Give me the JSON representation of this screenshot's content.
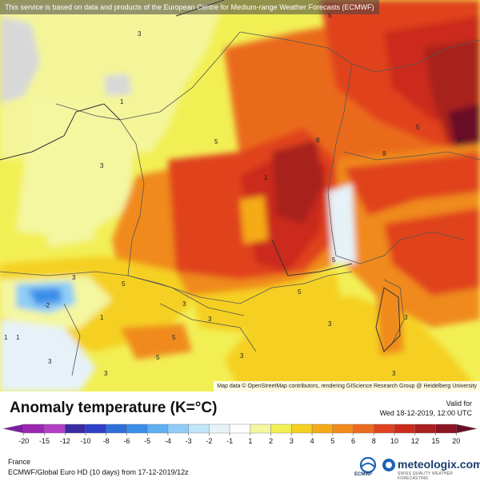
{
  "banner": "This service is based on data and products of the European Centre for Medium-range Weather Forecasts (ECMWF)",
  "attribution": "Map data © OpenStreetMap contributors, rendering GIScience Research Group @ Heidelberg University",
  "map": {
    "contour_labels": [
      "1",
      "3",
      "5",
      "1",
      "3",
      "1",
      "5",
      "3",
      "5",
      "5",
      "8",
      "8",
      "3",
      "5",
      "5",
      "3",
      "5",
      "3",
      "3",
      "5",
      "3",
      "1",
      "-2",
      "1",
      "3",
      "3",
      "5",
      "3"
    ]
  },
  "legend": {
    "title": "Anomaly temperature (K=°C)",
    "scale_values": [
      "-20",
      "-15",
      "-12",
      "-10",
      "-8",
      "-6",
      "-5",
      "-4",
      "-3",
      "-2",
      "-1",
      "1",
      "2",
      "3",
      "4",
      "5",
      "6",
      "8",
      "10",
      "12",
      "15",
      "20"
    ],
    "colors": [
      "#7b1fa2",
      "#9c27b0",
      "#b43fc6",
      "#3b2ba0",
      "#2e3fc8",
      "#2f6fd8",
      "#3a8ee8",
      "#5fb0f2",
      "#8fcdf6",
      "#c2e4f8",
      "#e6f2f8",
      "#ffffff",
      "#f4f6a0",
      "#f2ef55",
      "#f5d020",
      "#f5aa18",
      "#f08a1c",
      "#ea6a1f",
      "#e0421e",
      "#cb2a1a",
      "#a8201f",
      "#8a1420",
      "#6b0d25"
    ]
  },
  "valid": {
    "label": "Valid for",
    "date": "Wed 18-12-2019, 12:00 UTC"
  },
  "footer": {
    "region": "France",
    "model_run": "ECMWF/Global Euro HD (10 days)  from  17-12-2019/12z"
  },
  "branding": {
    "ecmwf": "ECMWF",
    "meteologix": "meteologix.com",
    "tagline": "SWISS QUALITY WEATHER FORECASTING"
  }
}
